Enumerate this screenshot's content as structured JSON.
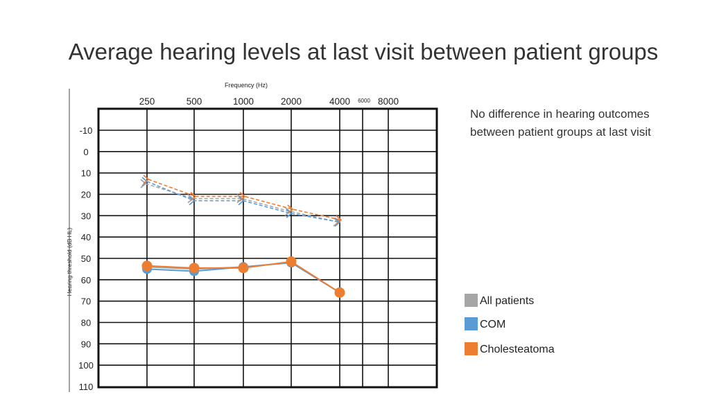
{
  "title": "Average hearing levels at last visit between patient groups",
  "note": "No difference in hearing outcomes between patient groups at last visit",
  "legend": [
    {
      "label": "All patients",
      "color": "#a6a6a6"
    },
    {
      "label": "COM",
      "color": "#5b9bd5"
    },
    {
      "label": "Cholesteatoma",
      "color": "#ed7d31"
    }
  ],
  "chart_data": {
    "type": "line",
    "title": "",
    "xlabel": "Frequency (Hz)",
    "ylabel": "Hearing threshold (dB HL)",
    "x_ticks": [
      "250",
      "500",
      "1000",
      "2000",
      "4000",
      "6000",
      "8000"
    ],
    "x": [
      250,
      500,
      1000,
      2000,
      4000
    ],
    "y_ticks": [
      -10,
      0,
      10,
      20,
      30,
      40,
      50,
      60,
      70,
      80,
      90,
      100,
      110
    ],
    "ylim": [
      -10,
      110
    ],
    "y_inverted": true,
    "grid": true,
    "series": [
      {
        "name": "All patients",
        "group": "bone",
        "color": "#a6a6a6",
        "values": [
          15,
          22,
          22,
          28,
          33
        ]
      },
      {
        "name": "COM",
        "group": "bone",
        "color": "#5b9bd5",
        "values": [
          14,
          23,
          23,
          29,
          33
        ]
      },
      {
        "name": "Cholesteatoma",
        "group": "bone",
        "color": "#ed7d31",
        "values": [
          13,
          21,
          21,
          27,
          32
        ]
      },
      {
        "name": "All patients",
        "group": "air",
        "color": "#a6a6a6",
        "values": [
          54,
          55,
          54,
          52,
          66
        ]
      },
      {
        "name": "COM",
        "group": "air",
        "color": "#5b9bd5",
        "values": [
          55,
          56,
          54,
          52,
          66
        ]
      },
      {
        "name": "Cholesteatoma",
        "group": "air",
        "color": "#ed7d31",
        "values": [
          53.5,
          54.5,
          54.5,
          51.5,
          66
        ]
      }
    ]
  }
}
